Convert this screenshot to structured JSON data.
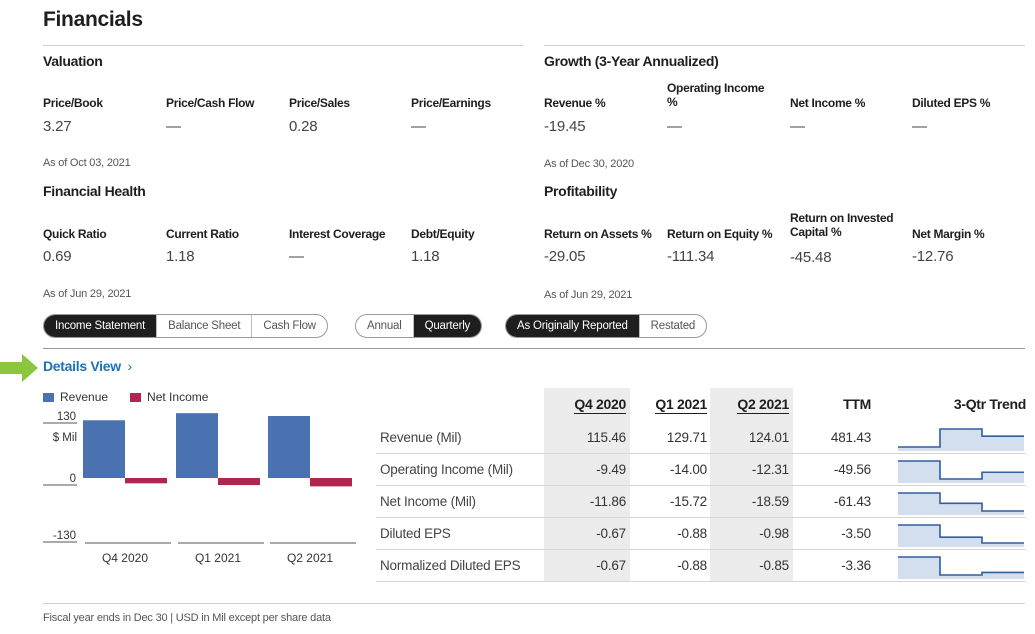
{
  "title": "Financials",
  "valuation": {
    "title": "Valuation",
    "metrics": [
      {
        "label": "Price/Book",
        "value": "3.27"
      },
      {
        "label": "Price/Cash Flow",
        "value": "—"
      },
      {
        "label": "Price/Sales",
        "value": "0.28"
      },
      {
        "label": "Price/Earnings",
        "value": "—"
      }
    ],
    "as_of": "As of Oct 03, 2021"
  },
  "growth": {
    "title": "Growth (3-Year Annualized)",
    "metrics": [
      {
        "label": "Revenue %",
        "value": "-19.45"
      },
      {
        "label": "Operating Income %",
        "value": "—"
      },
      {
        "label": "Net Income %",
        "value": "—"
      },
      {
        "label": "Diluted EPS %",
        "value": "—"
      }
    ],
    "as_of": "As of Dec 30, 2020"
  },
  "health": {
    "title": "Financial Health",
    "metrics": [
      {
        "label": "Quick Ratio",
        "value": "0.69"
      },
      {
        "label": "Current Ratio",
        "value": "1.18"
      },
      {
        "label": "Interest Coverage",
        "value": "—"
      },
      {
        "label": "Debt/Equity",
        "value": "1.18"
      }
    ],
    "as_of": "As of Jun 29, 2021"
  },
  "profitability": {
    "title": "Profitability",
    "metrics": [
      {
        "label": "Return on Assets %",
        "value": "-29.05"
      },
      {
        "label": "Return on Equity %",
        "value": "-111.34"
      },
      {
        "label": "Return on Invested Capital %",
        "value": "-45.48"
      },
      {
        "label": "Net Margin %",
        "value": "-12.76"
      }
    ],
    "as_of": "As of Jun 29, 2021"
  },
  "toggles": {
    "statement": [
      "Income Statement",
      "Balance Sheet",
      "Cash Flow"
    ],
    "period": [
      "Annual",
      "Quarterly"
    ],
    "reporting": [
      "As Originally Reported",
      "Restated"
    ],
    "active": {
      "statement": "Income Statement",
      "period": "Quarterly",
      "reporting": "As Originally Reported"
    }
  },
  "details_link": "Details View",
  "arrow_icon": "green-arrow-icon",
  "chart_data": {
    "type": "bar",
    "categories": [
      "Q4 2020",
      "Q1 2021",
      "Q2 2021"
    ],
    "series": [
      {
        "name": "Revenue",
        "color": "#4a72b0",
        "values": [
          115.46,
          129.71,
          124.01
        ]
      },
      {
        "name": "Net Income",
        "color": "#b0264e",
        "values": [
          -11.86,
          -15.72,
          -18.59
        ]
      }
    ],
    "y_ticks": [
      "130",
      "0",
      "-130"
    ],
    "y_tick_values": [
      130,
      0,
      -130
    ],
    "y_unit": "$ Mil",
    "ylim": [
      -130,
      130
    ]
  },
  "table": {
    "columns": [
      "Q4 2020",
      "Q1 2021",
      "Q2 2021",
      "TTM",
      "3-Qtr Trend"
    ],
    "rows": [
      {
        "label": "Revenue (Mil)",
        "values": [
          "115.46",
          "129.71",
          "124.01",
          "481.43"
        ],
        "trend": [
          115.46,
          129.71,
          124.01
        ]
      },
      {
        "label": "Operating Income (Mil)",
        "values": [
          "-9.49",
          "-14.00",
          "-12.31",
          "-49.56"
        ],
        "trend": [
          -9.49,
          -14.0,
          -12.31
        ]
      },
      {
        "label": "Net Income (Mil)",
        "values": [
          "-11.86",
          "-15.72",
          "-18.59",
          "-61.43"
        ],
        "trend": [
          -11.86,
          -15.72,
          -18.59
        ]
      },
      {
        "label": "Diluted EPS",
        "values": [
          "-0.67",
          "-0.88",
          "-0.98",
          "-3.50"
        ],
        "trend": [
          -0.67,
          -0.88,
          -0.98
        ]
      },
      {
        "label": "Normalized Diluted EPS",
        "values": [
          "-0.67",
          "-0.88",
          "-0.85",
          "-3.36"
        ],
        "trend": [
          -0.67,
          -0.88,
          -0.85
        ]
      }
    ]
  },
  "footer": "Fiscal year ends in Dec 30 | USD in Mil except per share data"
}
